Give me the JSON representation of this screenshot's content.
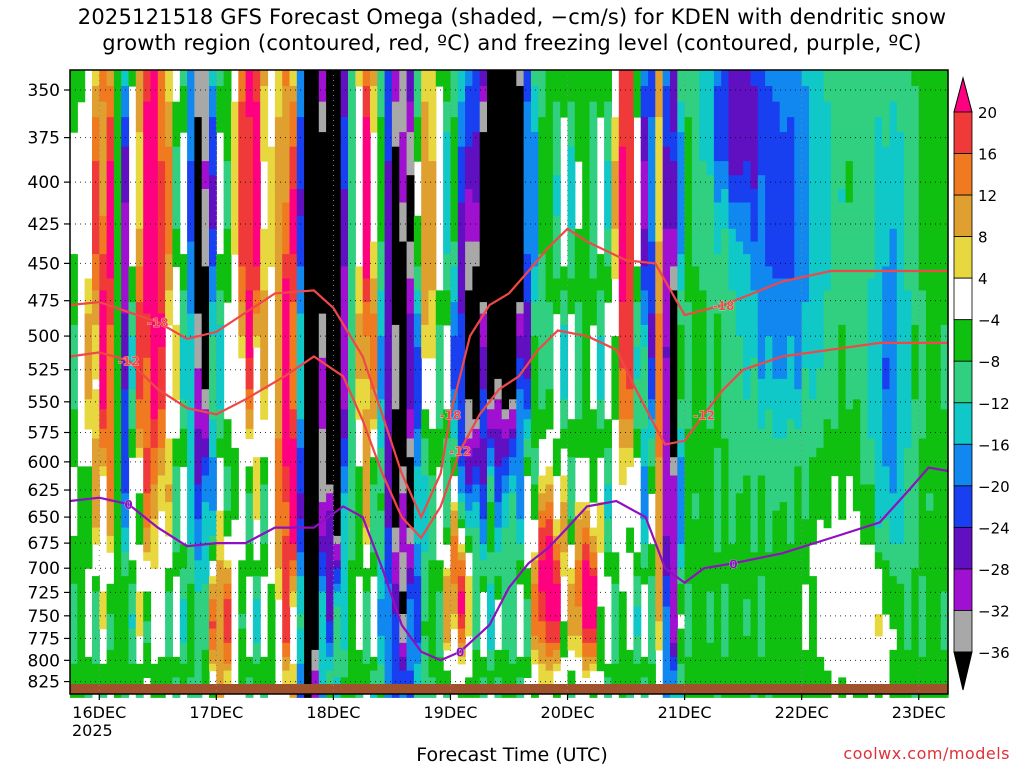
{
  "title_line1": "2025121518 GFS Forecast Omega (shaded, −cm/s) for KDEN with dendritic snow",
  "title_line2": "growth region (contoured, red, ºC) and freezing level (contoured, purple, ºC)",
  "xlabel": "Forecast Time (UTC)",
  "credit": "coolwx.com/models",
  "year_label": "2025",
  "chart_data": {
    "type": "heatmap",
    "y_axis": {
      "label": "",
      "ticks": [
        350,
        375,
        400,
        425,
        450,
        475,
        500,
        525,
        550,
        575,
        600,
        625,
        650,
        675,
        700,
        725,
        750,
        775,
        800,
        825
      ],
      "scale": "log-pressure",
      "range": [
        340,
        840
      ]
    },
    "x_axis": {
      "ticks": [
        "16DEC",
        "17DEC",
        "18DEC",
        "19DEC",
        "20DEC",
        "21DEC",
        "22DEC",
        "23DEC"
      ],
      "tick_hours": [
        0,
        24,
        48,
        72,
        96,
        120,
        144,
        168
      ],
      "range_hours": [
        -6,
        174
      ]
    },
    "grid": true,
    "colorbar": {
      "labels": [
        "20",
        "16",
        "12",
        "8",
        "4",
        "−4",
        "−8",
        "−12",
        "−16",
        "−20",
        "−24",
        "−28",
        "−32",
        "−36"
      ],
      "colors": [
        "#ff0080",
        "#f03a3a",
        "#f07a20",
        "#e0a030",
        "#e8d840",
        "#ffffff",
        "#10c010",
        "#30d080",
        "#10c8c8",
        "#1088f0",
        "#1840f0",
        "#6010c0",
        "#a010d0",
        "#a8a8a8",
        "#000000"
      ]
    },
    "series": [
      {
        "name": "-18",
        "values": [
          [
            -6,
            478
          ],
          [
            0,
            476
          ],
          [
            12,
            490
          ],
          [
            18,
            502
          ],
          [
            24,
            497
          ],
          [
            36,
            470
          ],
          [
            44,
            468
          ],
          [
            48,
            480
          ],
          [
            54,
            515
          ],
          [
            58,
            560
          ],
          [
            62,
            610
          ],
          [
            66,
            650
          ],
          [
            70,
            610
          ],
          [
            72,
            560
          ],
          [
            76,
            500
          ],
          [
            80,
            478
          ],
          [
            84,
            470
          ],
          [
            88,
            455
          ],
          [
            92,
            440
          ],
          [
            96,
            428
          ],
          [
            100,
            436
          ],
          [
            108,
            448
          ],
          [
            114,
            450
          ],
          [
            120,
            485
          ],
          [
            128,
            478
          ],
          [
            134,
            470
          ],
          [
            140,
            462
          ],
          [
            150,
            455
          ],
          [
            160,
            455
          ],
          [
            174,
            455
          ]
        ]
      },
      {
        "name": "-12",
        "values": [
          [
            -6,
            515
          ],
          [
            0,
            512
          ],
          [
            6,
            518
          ],
          [
            12,
            540
          ],
          [
            18,
            555
          ],
          [
            24,
            560
          ],
          [
            30,
            548
          ],
          [
            38,
            530
          ],
          [
            44,
            515
          ],
          [
            50,
            530
          ],
          [
            54,
            565
          ],
          [
            58,
            610
          ],
          [
            62,
            650
          ],
          [
            66,
            670
          ],
          [
            70,
            640
          ],
          [
            74,
            590
          ],
          [
            78,
            560
          ],
          [
            82,
            540
          ],
          [
            86,
            530
          ],
          [
            90,
            510
          ],
          [
            94,
            496
          ],
          [
            100,
            500
          ],
          [
            106,
            510
          ],
          [
            110,
            540
          ],
          [
            114,
            570
          ],
          [
            116,
            585
          ],
          [
            120,
            582
          ],
          [
            124,
            560
          ],
          [
            128,
            540
          ],
          [
            132,
            525
          ],
          [
            140,
            515
          ],
          [
            150,
            510
          ],
          [
            160,
            505
          ],
          [
            174,
            505
          ]
        ]
      },
      {
        "name": "0",
        "values": [
          [
            -6,
            635
          ],
          [
            0,
            632
          ],
          [
            6,
            638
          ],
          [
            12,
            660
          ],
          [
            18,
            678
          ],
          [
            24,
            675
          ],
          [
            30,
            675
          ],
          [
            36,
            660
          ],
          [
            44,
            660
          ],
          [
            50,
            640
          ],
          [
            54,
            650
          ],
          [
            58,
            700
          ],
          [
            62,
            760
          ],
          [
            66,
            790
          ],
          [
            70,
            800
          ],
          [
            74,
            790
          ],
          [
            80,
            760
          ],
          [
            84,
            720
          ],
          [
            88,
            695
          ],
          [
            92,
            680
          ],
          [
            96,
            660
          ],
          [
            100,
            640
          ],
          [
            106,
            635
          ],
          [
            112,
            650
          ],
          [
            116,
            700
          ],
          [
            120,
            715
          ],
          [
            124,
            700
          ],
          [
            130,
            695
          ],
          [
            140,
            685
          ],
          [
            150,
            670
          ],
          [
            160,
            655
          ],
          [
            166,
            625
          ],
          [
            170,
            605
          ],
          [
            174,
            608
          ]
        ]
      }
    ]
  }
}
